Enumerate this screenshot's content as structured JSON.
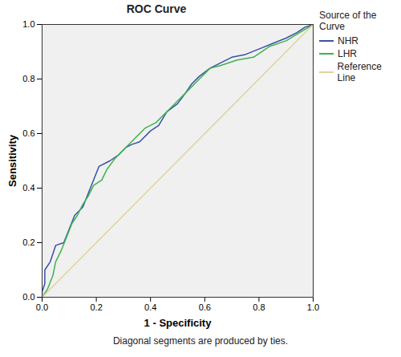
{
  "chart_data": {
    "type": "line",
    "title": "ROC Curve",
    "x_label": "1 - Specificity",
    "y_label": "Sensitivity",
    "legend_title": "Source of the Curve",
    "caption": "Diagonal segments are produced by ties.",
    "legend": "right",
    "xlim": [
      0,
      1
    ],
    "ylim": [
      0,
      1
    ],
    "xticks": [
      {
        "value": 0,
        "label": "0.0"
      },
      {
        "value": 0.2,
        "label": "0.2"
      },
      {
        "value": 0.4,
        "label": "0.4"
      },
      {
        "value": 0.6,
        "label": "0.6"
      },
      {
        "value": 0.8,
        "label": "0.8"
      },
      {
        "value": 1,
        "label": "1.0"
      }
    ],
    "yticks": [
      {
        "value": 0,
        "label": "0.0"
      },
      {
        "value": 0.2,
        "label": "0.2"
      },
      {
        "value": 0.4,
        "label": "0.4"
      },
      {
        "value": 0.6,
        "label": "0.6"
      },
      {
        "value": 0.8,
        "label": "0.8"
      },
      {
        "value": 1,
        "label": "1.0"
      }
    ],
    "series": [
      {
        "name": "NHR",
        "color": "#3b4fa8",
        "x": [
          0,
          0,
          0.01,
          0.01,
          0.03,
          0.05,
          0.08,
          0.1,
          0.12,
          0.15,
          0.17,
          0.19,
          0.21,
          0.25,
          0.28,
          0.31,
          0.33,
          0.36,
          0.4,
          0.43,
          0.46,
          0.5,
          0.53,
          0.55,
          0.58,
          0.62,
          0.66,
          0.7,
          0.75,
          0.8,
          0.85,
          0.9,
          0.94,
          0.97,
          1
        ],
        "values": [
          0,
          0.02,
          0.05,
          0.1,
          0.13,
          0.19,
          0.2,
          0.25,
          0.3,
          0.33,
          0.38,
          0.43,
          0.48,
          0.5,
          0.52,
          0.55,
          0.56,
          0.57,
          0.61,
          0.63,
          0.68,
          0.71,
          0.75,
          0.78,
          0.81,
          0.84,
          0.86,
          0.88,
          0.89,
          0.91,
          0.93,
          0.95,
          0.97,
          0.99,
          1
        ]
      },
      {
        "name": "LHR",
        "color": "#3cb44b",
        "x": [
          0,
          0.02,
          0.04,
          0.05,
          0.07,
          0.09,
          0.11,
          0.13,
          0.15,
          0.17,
          0.19,
          0.22,
          0.24,
          0.27,
          0.31,
          0.34,
          0.38,
          0.42,
          0.46,
          0.5,
          0.54,
          0.58,
          0.62,
          0.66,
          0.72,
          0.78,
          0.84,
          0.9,
          0.95,
          1
        ],
        "values": [
          0,
          0.03,
          0.08,
          0.13,
          0.17,
          0.22,
          0.27,
          0.3,
          0.34,
          0.37,
          0.41,
          0.43,
          0.47,
          0.51,
          0.55,
          0.58,
          0.62,
          0.64,
          0.68,
          0.72,
          0.76,
          0.8,
          0.84,
          0.85,
          0.87,
          0.88,
          0.92,
          0.94,
          0.97,
          1
        ]
      },
      {
        "name": "Reference Line",
        "color": "#e3d19a",
        "x": [
          0,
          1
        ],
        "values": [
          0,
          1
        ]
      }
    ]
  }
}
